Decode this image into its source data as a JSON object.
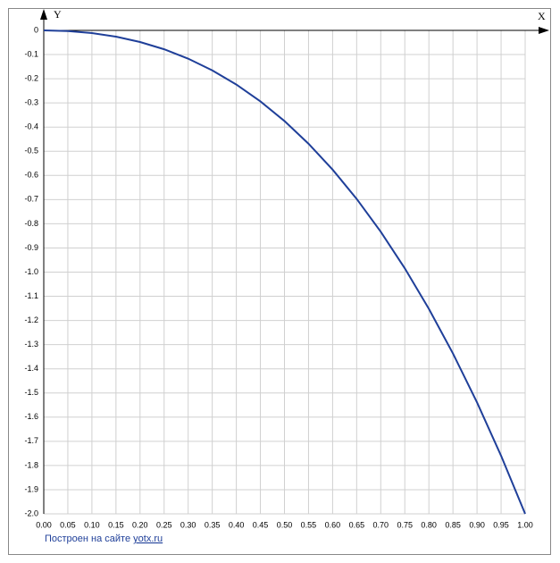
{
  "chart_data": {
    "type": "line",
    "x_label": "X",
    "y_label": "Y",
    "x": [
      0,
      0.05,
      0.1,
      0.15,
      0.2,
      0.25,
      0.3,
      0.35,
      0.4,
      0.45,
      0.5,
      0.55,
      0.6,
      0.65,
      0.7,
      0.75,
      0.8,
      0.85,
      0.9,
      0.95,
      1
    ],
    "series": [
      {
        "color": "#1f3f99",
        "values": [
          0,
          -0.0026,
          -0.011,
          -0.0259,
          -0.048,
          -0.0781,
          -0.117,
          -0.1654,
          -0.224,
          -0.2936,
          -0.375,
          -0.4689,
          -0.576,
          -0.6971,
          -0.833,
          -0.9844,
          -1.152,
          -1.3366,
          -1.539,
          -1.7599,
          -2
        ]
      }
    ],
    "xlim": [
      0,
      1
    ],
    "ylim": [
      -2,
      0
    ],
    "xticks": [
      {
        "value": 0,
        "label": "0.00"
      },
      {
        "value": 0.05,
        "label": "0.05"
      },
      {
        "value": 0.1,
        "label": "0.10"
      },
      {
        "value": 0.15,
        "label": "0.15"
      },
      {
        "value": 0.2,
        "label": "0.20"
      },
      {
        "value": 0.25,
        "label": "0.25"
      },
      {
        "value": 0.3,
        "label": "0.30"
      },
      {
        "value": 0.35,
        "label": "0.35"
      },
      {
        "value": 0.4,
        "label": "0.40"
      },
      {
        "value": 0.45,
        "label": "0.45"
      },
      {
        "value": 0.5,
        "label": "0.50"
      },
      {
        "value": 0.55,
        "label": "0.55"
      },
      {
        "value": 0.6,
        "label": "0.60"
      },
      {
        "value": 0.65,
        "label": "0.65"
      },
      {
        "value": 0.7,
        "label": "0.70"
      },
      {
        "value": 0.75,
        "label": "0.75"
      },
      {
        "value": 0.8,
        "label": "0.80"
      },
      {
        "value": 0.85,
        "label": "0.85"
      },
      {
        "value": 0.9,
        "label": "0.90"
      },
      {
        "value": 0.95,
        "label": "0.95"
      },
      {
        "value": 1,
        "label": "1.00"
      }
    ],
    "yticks": [
      0,
      -0.1,
      -0.2,
      -0.3,
      -0.4,
      -0.5,
      -0.6,
      -0.7,
      -0.8,
      -0.9,
      {
        "value": -1,
        "label": "-1.0"
      },
      -1.1,
      -1.2,
      -1.3,
      -1.4,
      -1.5,
      -1.6,
      -1.7,
      -1.8,
      -1.9,
      {
        "value": -2,
        "label": "-2.0"
      }
    ],
    "grid": true
  },
  "footer": {
    "text": "Построен на сайте",
    "link": "yotx.ru"
  }
}
